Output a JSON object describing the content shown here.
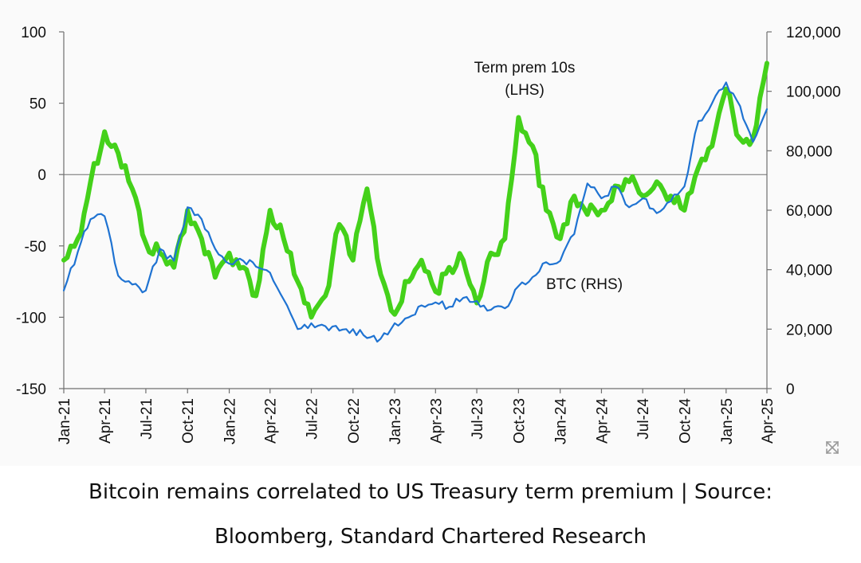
{
  "caption": {
    "line1": "Bitcoin remains correlated to US Treasury term premium | Source:",
    "line2": "Bloomberg, Standard Chartered Research"
  },
  "expand_icon": "expand-arrows-icon",
  "chart_data": {
    "type": "line",
    "title": "",
    "grid": false,
    "legend": "none",
    "annotations": [
      {
        "lines": [
          "Term prem 10s",
          "(LHS)"
        ],
        "series": "term_premium"
      },
      {
        "lines": [
          "BTC (RHS)"
        ],
        "series": "btc"
      }
    ],
    "x_ticks": [
      "Jan-21",
      "Apr-21",
      "Jul-21",
      "Oct-21",
      "Jan-22",
      "Apr-22",
      "Jul-22",
      "Oct-22",
      "Jan-23",
      "Apr-23",
      "Jul-23",
      "Oct-23",
      "Jan-24",
      "Apr-24",
      "Jul-24",
      "Oct-24",
      "Jan-25",
      "Apr-25"
    ],
    "y_left": {
      "min": -150,
      "max": 100,
      "ticks": [
        "100",
        "50",
        "0",
        "-50",
        "-100",
        "-150"
      ],
      "tick_values": [
        100,
        50,
        0,
        -50,
        -100,
        -150
      ]
    },
    "y_right": {
      "min": 0,
      "max": 120000,
      "ticks": [
        "120,000",
        "100,000",
        "80,000",
        "60,000",
        "40,000",
        "20,000",
        "0"
      ],
      "tick_values": [
        120000,
        100000,
        80000,
        60000,
        40000,
        20000,
        0
      ]
    },
    "series": [
      {
        "key": "term_premium",
        "axis": "left",
        "color": "#44d11a",
        "x": [
          "2021-01",
          "2021-02",
          "2021-03",
          "2021-04",
          "2021-05",
          "2021-06",
          "2021-07",
          "2021-08",
          "2021-09",
          "2021-10",
          "2021-11",
          "2021-12",
          "2022-01",
          "2022-02",
          "2022-03",
          "2022-04",
          "2022-05",
          "2022-06",
          "2022-07",
          "2022-08",
          "2022-09",
          "2022-10",
          "2022-11",
          "2022-12",
          "2023-01",
          "2023-02",
          "2023-03",
          "2023-04",
          "2023-05",
          "2023-06",
          "2023-07",
          "2023-08",
          "2023-09",
          "2023-10",
          "2023-11",
          "2023-12",
          "2024-01",
          "2024-02",
          "2024-03",
          "2024-04",
          "2024-05",
          "2024-06",
          "2024-07",
          "2024-08",
          "2024-09",
          "2024-10",
          "2024-11",
          "2024-12",
          "2025-01",
          "2025-02",
          "2025-03",
          "2025-04"
        ],
        "values": [
          -60,
          -45,
          -5,
          30,
          15,
          -10,
          -48,
          -55,
          -65,
          -25,
          -45,
          -72,
          -55,
          -65,
          -85,
          -25,
          -45,
          -75,
          -100,
          -85,
          -35,
          -60,
          -10,
          -70,
          -98,
          -75,
          -60,
          -82,
          -65,
          -60,
          -90,
          -55,
          -45,
          40,
          20,
          -25,
          -45,
          -15,
          -28,
          -25,
          -8,
          -5,
          -15,
          -5,
          -15,
          -25,
          5,
          20,
          60,
          25,
          25,
          78
        ]
      },
      {
        "key": "btc",
        "axis": "right",
        "color": "#1f73d2",
        "x": [
          "2021-01",
          "2021-02",
          "2021-03",
          "2021-04",
          "2021-05",
          "2021-06",
          "2021-07",
          "2021-08",
          "2021-09",
          "2021-10",
          "2021-11",
          "2021-12",
          "2022-01",
          "2022-02",
          "2022-03",
          "2022-04",
          "2022-05",
          "2022-06",
          "2022-07",
          "2022-08",
          "2022-09",
          "2022-10",
          "2022-11",
          "2022-12",
          "2023-01",
          "2023-02",
          "2023-03",
          "2023-04",
          "2023-05",
          "2023-06",
          "2023-07",
          "2023-08",
          "2023-09",
          "2023-10",
          "2023-11",
          "2023-12",
          "2024-01",
          "2024-02",
          "2024-03",
          "2024-04",
          "2024-05",
          "2024-06",
          "2024-07",
          "2024-08",
          "2024-09",
          "2024-10",
          "2024-11",
          "2024-12",
          "2025-01",
          "2025-02",
          "2025-03",
          "2025-04"
        ],
        "values": [
          33000,
          46000,
          57000,
          58000,
          38000,
          35000,
          33000,
          47000,
          43000,
          61000,
          57000,
          47000,
          42000,
          43000,
          41000,
          39000,
          30000,
          20000,
          22000,
          21000,
          19500,
          20000,
          17000,
          16800,
          22000,
          24000,
          28000,
          29000,
          27500,
          30500,
          29500,
          26500,
          27000,
          34500,
          37500,
          42500,
          43000,
          52000,
          69000,
          64000,
          68000,
          61000,
          64000,
          59000,
          63000,
          68000,
          90000,
          96000,
          103000,
          95000,
          83000,
          94000
        ]
      }
    ]
  }
}
